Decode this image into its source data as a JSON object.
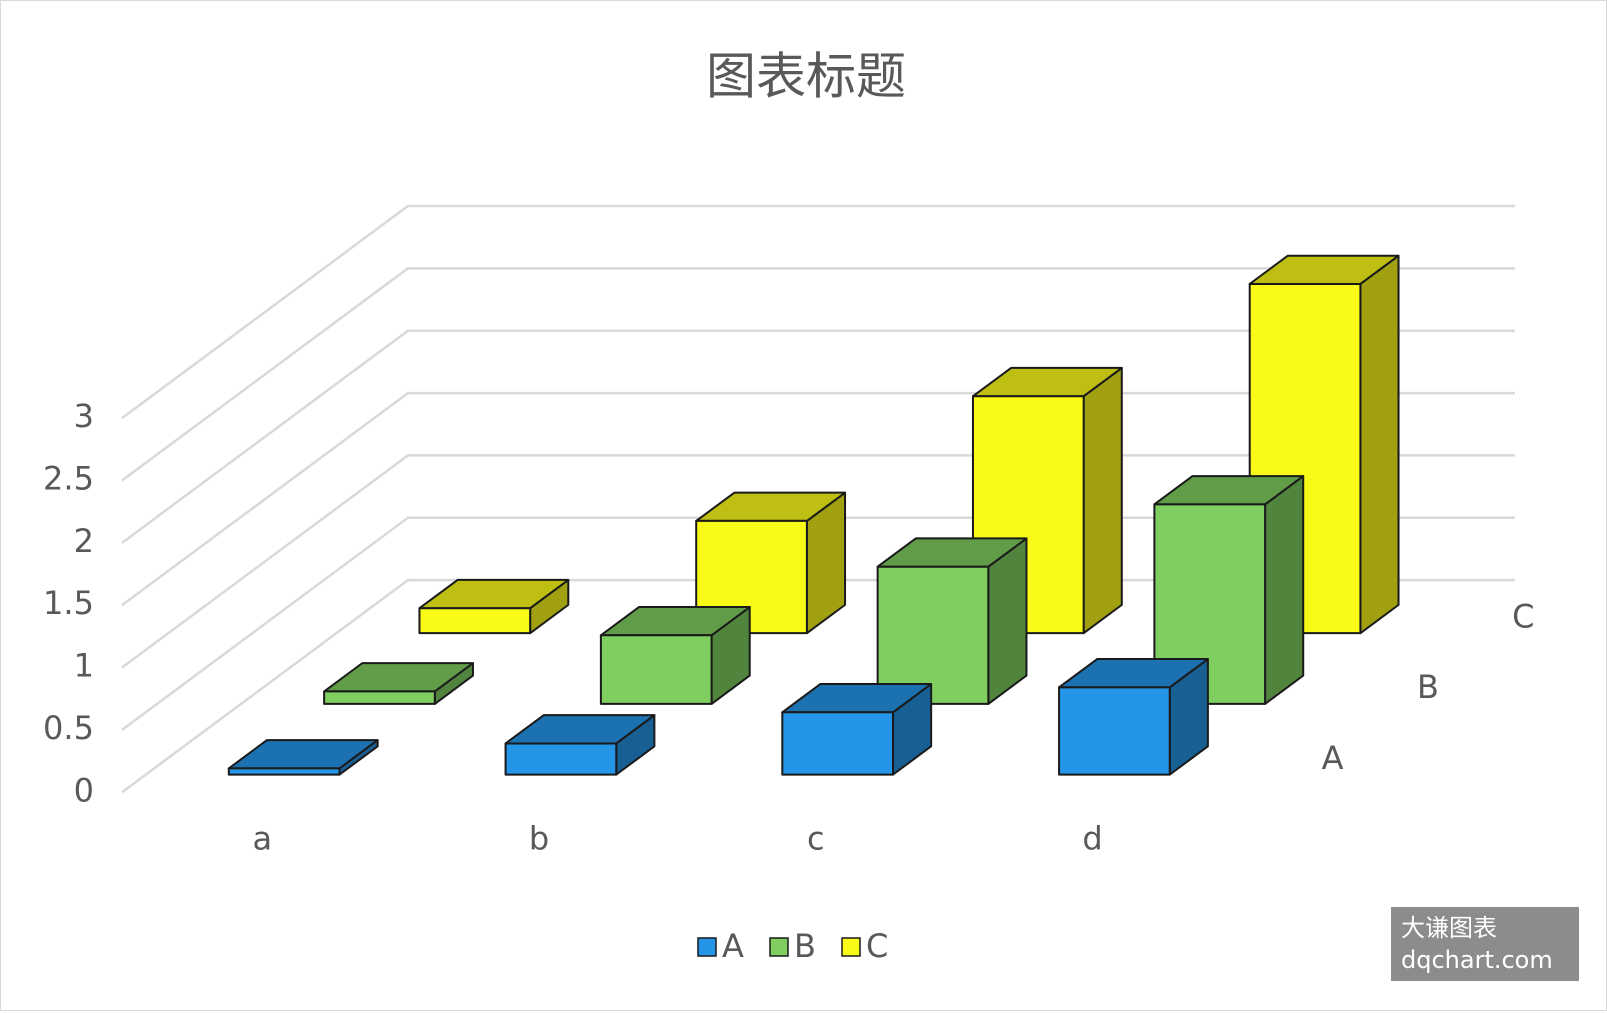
{
  "chart_data": {
    "type": "bar3d",
    "title": "图表标题",
    "categories": [
      "a",
      "b",
      "c",
      "d"
    ],
    "series": [
      {
        "name": "A",
        "color": "#2595e8",
        "values": [
          0.05,
          0.25,
          0.5,
          0.7
        ]
      },
      {
        "name": "B",
        "color": "#7fce5f",
        "values": [
          0.1,
          0.55,
          1.1,
          1.6
        ]
      },
      {
        "name": "C",
        "color": "#fafa19",
        "values": [
          0.2,
          0.9,
          1.9,
          2.8
        ]
      }
    ],
    "ylim": [
      0,
      3
    ],
    "yticks": [
      0,
      0.5,
      1,
      1.5,
      2,
      2.5,
      3
    ],
    "grid": true,
    "legend": "bottom"
  },
  "watermark": {
    "line1": "大谦图表",
    "line2": "dqchart.com"
  }
}
